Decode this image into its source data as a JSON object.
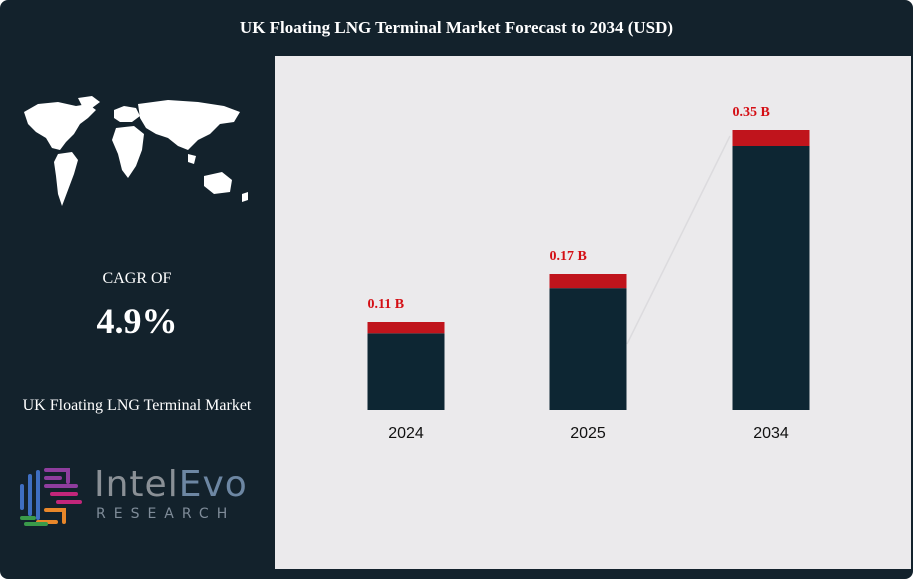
{
  "header": {
    "title": "UK Floating LNG Terminal Market Forecast to 2034 (USD)"
  },
  "summary": {
    "cagr_label": "CAGR OF",
    "cagr_value": "4.9%",
    "market_name": "UK Floating LNG Terminal Market"
  },
  "logo": {
    "word_intel": "Intel",
    "word_evo": "Evo",
    "subtitle": "RESEARCH"
  },
  "colors": {
    "bar": "#0d2633",
    "bar_cap": "#c0141c",
    "label": "#d40e14",
    "panel": "#ebeaec",
    "background": "#13222c"
  },
  "chart_data": {
    "type": "bar",
    "categories": [
      "2024",
      "2025",
      "2034"
    ],
    "values": [
      0.11,
      0.17,
      0.35
    ],
    "data_labels": [
      "0.11 B",
      "0.17 B",
      "0.35 B"
    ],
    "title": "UK Floating LNG Terminal Market Forecast to 2034 (USD)",
    "xlabel": "",
    "ylabel": "",
    "ylim": [
      0,
      0.4
    ],
    "grid": false,
    "legend": "none"
  }
}
